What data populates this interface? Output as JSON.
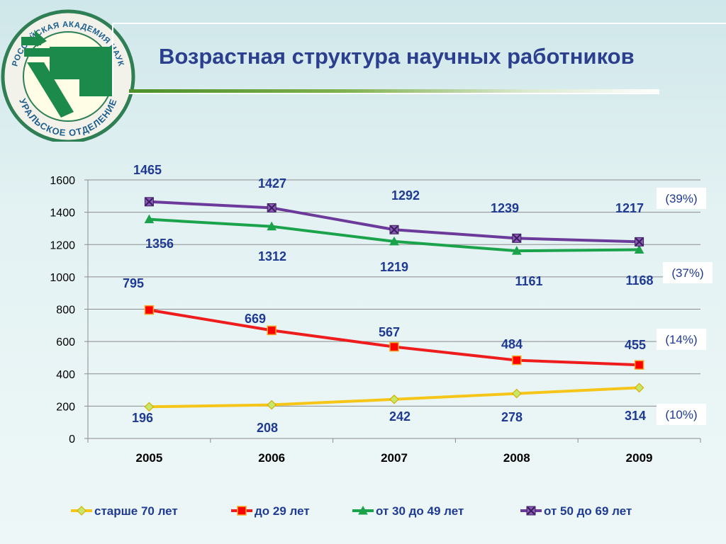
{
  "logo": {
    "ring_text_top": "РОССИЙСКАЯ АКАДЕМИЯ НАУК",
    "ring_text_bottom": "УРАЛЬСКОЕ ОТДЕЛЕНИЕ"
  },
  "slide": {
    "title": "Возрастная структура научных работников"
  },
  "chart_data": {
    "type": "line",
    "title": "",
    "xlabel": "",
    "ylabel": "",
    "categories": [
      "2005",
      "2006",
      "2007",
      "2008",
      "2009"
    ],
    "ylim": [
      0,
      1600
    ],
    "yticks": [
      "0",
      "200",
      "400",
      "600",
      "800",
      "1000",
      "1200",
      "1400",
      "1600"
    ],
    "grid": true,
    "legend_position": "bottom",
    "series": [
      {
        "name": "старше 70 лет",
        "values": [
          196,
          208,
          242,
          278,
          314
        ],
        "labels": [
          "196",
          "208",
          "242",
          "278",
          "314"
        ],
        "share": "(10%)",
        "color": "#f5c518",
        "marker": "diamond",
        "marker_fill": "#c6e86a",
        "marker_stroke": "#d8b000"
      },
      {
        "name": "до 29 лет",
        "values": [
          795,
          669,
          567,
          484,
          455
        ],
        "labels": [
          "795",
          "669",
          "567",
          "484",
          "455"
        ],
        "share": "(14%)",
        "color": "#ee1c1c",
        "marker": "square",
        "marker_fill": "#ff0000",
        "marker_stroke": "#f5a623"
      },
      {
        "name": "от 30 до 49 лет",
        "values": [
          1356,
          1312,
          1219,
          1161,
          1168
        ],
        "labels": [
          "1356",
          "1312",
          "1219",
          "1161",
          "1168"
        ],
        "share": "(37%)",
        "color": "#1aa34a",
        "marker": "triangle",
        "marker_fill": "#1aa34a",
        "marker_stroke": "#1aa34a"
      },
      {
        "name": "от 50 до 69 лет",
        "values": [
          1465,
          1427,
          1292,
          1239,
          1217
        ],
        "labels": [
          "1465",
          "1427",
          "1292",
          "1239",
          "1217"
        ],
        "share": "(39%)",
        "color": "#6b3a9a",
        "marker": "x",
        "marker_fill": "#8a5cb8",
        "marker_stroke": "#3b1d5e"
      }
    ]
  }
}
